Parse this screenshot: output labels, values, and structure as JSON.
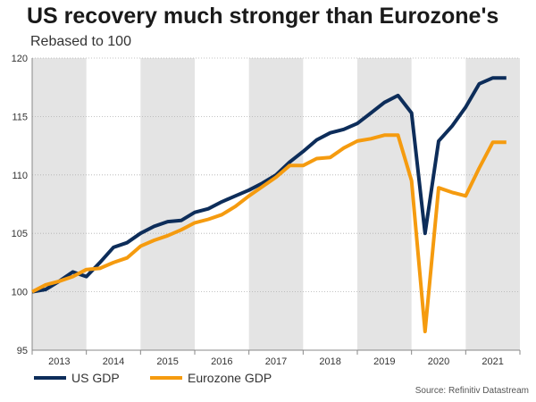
{
  "header": {
    "title": "US recovery much stronger than Eurozone's",
    "subtitle": "Rebased to 100"
  },
  "source": "Source: Refinitiv Datastream",
  "chart_data": {
    "type": "line",
    "xlim": [
      2013.0,
      2022.0
    ],
    "ylim": [
      95,
      120
    ],
    "yticks": [
      95,
      100,
      105,
      110,
      115,
      120
    ],
    "xtick_labels": [
      "2013",
      "2014",
      "2015",
      "2016",
      "2017",
      "2018",
      "2019",
      "2020",
      "2021"
    ],
    "grid": "horizontal dotted",
    "shaded_bands": "alternating years",
    "legend": "bottom",
    "series": [
      {
        "name": "US GDP",
        "color": "#0d2d5a",
        "x": [
          2013.0,
          2013.25,
          2013.5,
          2013.75,
          2014.0,
          2014.25,
          2014.5,
          2014.75,
          2015.0,
          2015.25,
          2015.5,
          2015.75,
          2016.0,
          2016.25,
          2016.5,
          2016.75,
          2017.0,
          2017.25,
          2017.5,
          2017.75,
          2018.0,
          2018.25,
          2018.5,
          2018.75,
          2019.0,
          2019.25,
          2019.5,
          2019.75,
          2020.0,
          2020.25,
          2020.5,
          2020.75,
          2021.0,
          2021.25,
          2021.5,
          2021.75
        ],
        "values": [
          100.0,
          100.2,
          100.9,
          101.7,
          101.3,
          102.5,
          103.8,
          104.2,
          105.0,
          105.6,
          106.0,
          106.1,
          106.8,
          107.1,
          107.7,
          108.2,
          108.7,
          109.3,
          110.0,
          111.1,
          112.0,
          113.0,
          113.6,
          113.9,
          114.4,
          115.3,
          116.2,
          116.8,
          115.3,
          105.0,
          112.9,
          114.2,
          115.8,
          117.8,
          118.3,
          118.3
        ]
      },
      {
        "name": "Eurozone GDP",
        "color": "#f59b0f",
        "x": [
          2013.0,
          2013.25,
          2013.5,
          2013.75,
          2014.0,
          2014.25,
          2014.5,
          2014.75,
          2015.0,
          2015.25,
          2015.5,
          2015.75,
          2016.0,
          2016.25,
          2016.5,
          2016.75,
          2017.0,
          2017.25,
          2017.5,
          2017.75,
          2018.0,
          2018.25,
          2018.5,
          2018.75,
          2019.0,
          2019.25,
          2019.5,
          2019.75,
          2020.0,
          2020.25,
          2020.5,
          2020.75,
          2021.0,
          2021.25,
          2021.5,
          2021.75
        ],
        "values": [
          100.0,
          100.6,
          100.9,
          101.3,
          101.9,
          102.0,
          102.5,
          102.9,
          103.9,
          104.4,
          104.8,
          105.3,
          105.9,
          106.2,
          106.6,
          107.3,
          108.2,
          109.0,
          109.8,
          110.8,
          110.8,
          111.4,
          111.5,
          112.3,
          112.9,
          113.1,
          113.4,
          113.4,
          109.5,
          96.6,
          108.9,
          108.5,
          108.2,
          110.6,
          112.8,
          112.8
        ]
      }
    ]
  }
}
